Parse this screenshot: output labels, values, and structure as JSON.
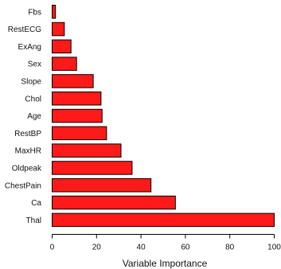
{
  "chart_data": {
    "type": "bar",
    "orientation": "horizontal",
    "categories": [
      "Fbs",
      "RestECG",
      "ExAng",
      "Sex",
      "Slope",
      "Chol",
      "Age",
      "RestBP",
      "MaxHR",
      "Oldpeak",
      "ChestPain",
      "Ca",
      "Thal"
    ],
    "values": [
      1.5,
      5.5,
      8.5,
      11,
      18.5,
      22,
      22.5,
      24.5,
      31,
      36,
      44.5,
      55.5,
      100
    ],
    "xlabel": "Variable Importance",
    "ylabel": "",
    "xlim": [
      0,
      100
    ],
    "xticks": [
      0,
      20,
      40,
      60,
      80,
      100
    ],
    "grid": false,
    "bar_color": "#ff1a1a",
    "bar_edge_color": "#000000"
  }
}
